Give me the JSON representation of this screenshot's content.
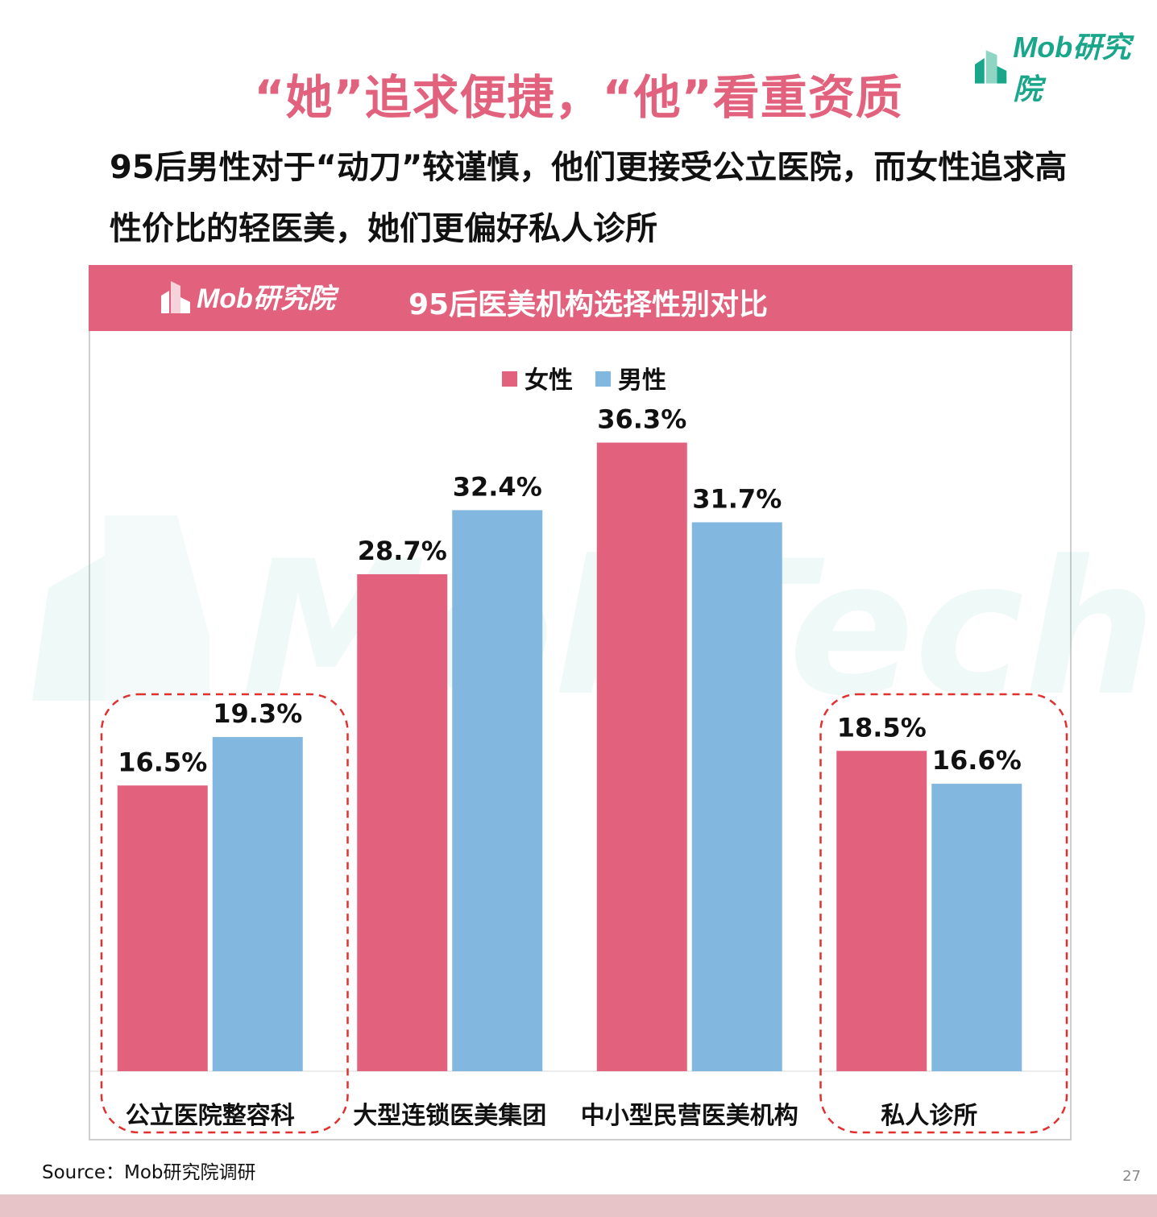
{
  "brand": {
    "name": "Mob研究院"
  },
  "title": "“她”追求便捷，“他”看重资质",
  "subtitle": "95后男性对于“动刀”较谨慎，他们更接受公立医院，而女性追求高性价比的轻医美，她们更偏好私人诊所",
  "banner": {
    "logo_text": "Mob研究院",
    "chart_title": "95后医美机构选择性别对比"
  },
  "watermark": "MobTech袤博",
  "source": "Source：Mob研究院调研",
  "page_number": "27",
  "colors": {
    "female": "#e2627e",
    "male": "#82b8df",
    "accent": "#e2627e",
    "highlight_border": "#e03030",
    "brand_green": "#1aa68a"
  },
  "chart_data": {
    "type": "bar",
    "title": "95后医美机构选择性别对比",
    "categories": [
      "公立医院整容科",
      "大型连锁医美集团",
      "中小型民营医美机构",
      "私人诊所"
    ],
    "series": [
      {
        "name": "女性",
        "values": [
          16.5,
          28.7,
          36.3,
          18.5
        ],
        "labels": [
          "16.5%",
          "28.7%",
          "36.3%",
          "18.5%"
        ]
      },
      {
        "name": "男性",
        "values": [
          19.3,
          32.4,
          31.7,
          16.6
        ],
        "labels": [
          "19.3%",
          "32.4%",
          "31.7%",
          "16.6%"
        ]
      }
    ],
    "ylim": [
      0,
      40
    ],
    "unit": "%",
    "legend": "top-center",
    "grid": false,
    "highlighted_categories": [
      "公立医院整容科",
      "私人诊所"
    ]
  }
}
